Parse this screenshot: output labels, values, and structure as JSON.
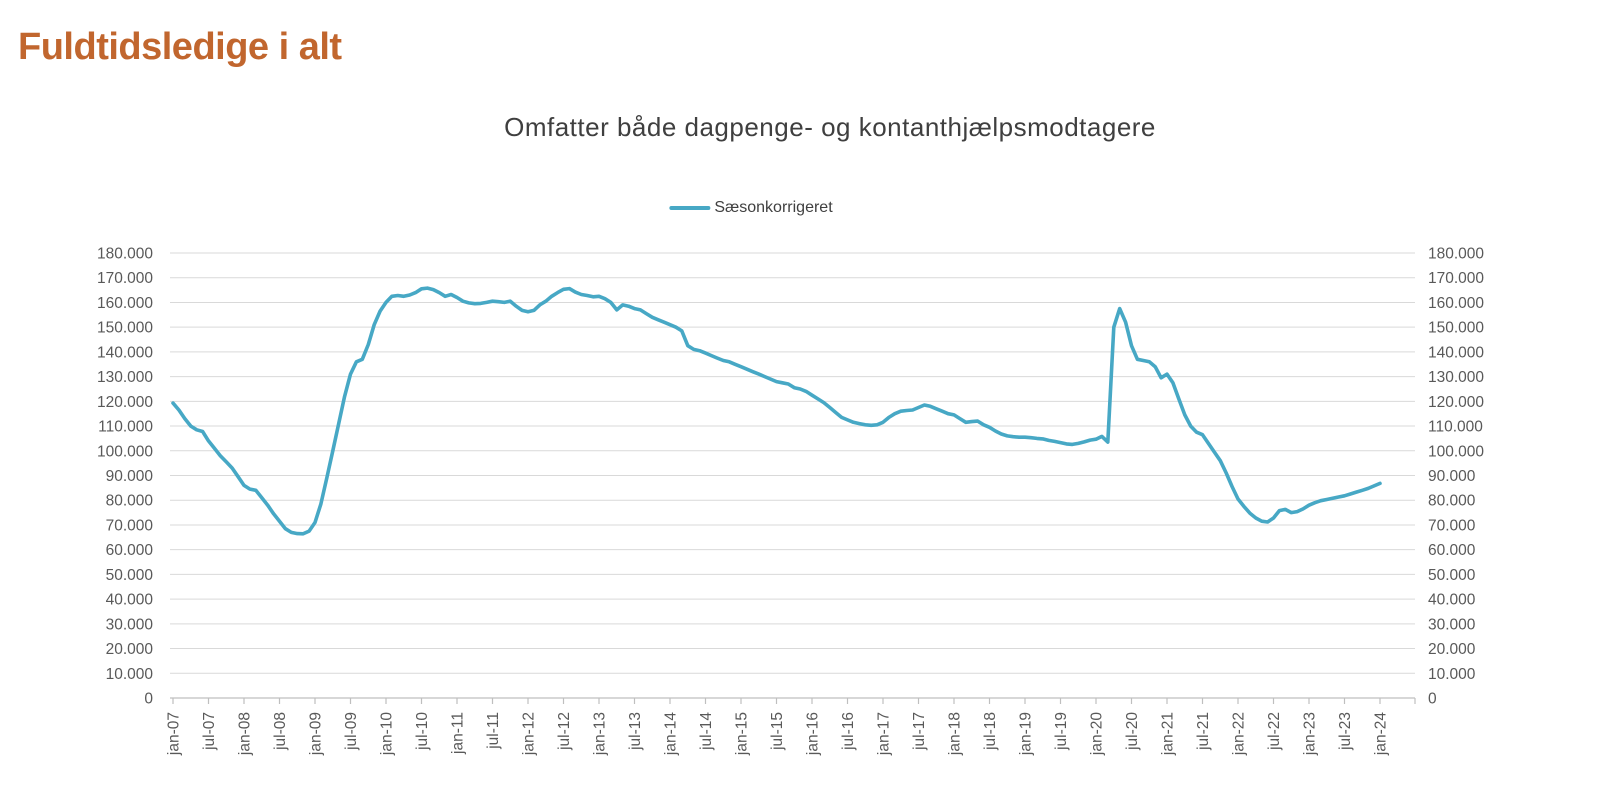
{
  "header": {
    "title": "Fuldtidsledige i alt"
  },
  "chart": {
    "subtitle": "Omfatter både dagpenge- og kontanthjælpsmodtagere",
    "legend": {
      "label": "Sæsonkorrigeret",
      "swatch": "line-swatch"
    }
  },
  "colors": {
    "title_accent": "#c1662e",
    "line": "#47a8c5",
    "gridline": "#d9d9d9",
    "axis_line": "#bfbfbf",
    "axis_text": "#595959",
    "subtitle_text": "#3f3f3f",
    "legend_text": "#404040",
    "background": "#ffffff"
  },
  "chart_data": {
    "type": "line",
    "title": "Omfatter både dagpenge- og kontanthjælpsmodtagere",
    "page_title": "Fuldtidsledige i alt",
    "legend_position": "top-center",
    "grid": "horizontal-only",
    "dual_y_axis": true,
    "ylim": [
      0,
      180000
    ],
    "y_tick_interval": 10000,
    "y_tick_labels": [
      "0",
      "10.000",
      "20.000",
      "30.000",
      "40.000",
      "50.000",
      "60.000",
      "70.000",
      "80.000",
      "90.000",
      "100.000",
      "110.000",
      "120.000",
      "130.000",
      "140.000",
      "150.000",
      "160.000",
      "170.000",
      "180.000"
    ],
    "x_unit": "month",
    "x_start": "jan-07",
    "x_end": "jan-24",
    "x_tick_every_months": 6,
    "x_tick_labels": [
      "jan-07",
      "jul-07",
      "jan-08",
      "jul-08",
      "jan-09",
      "jul-09",
      "jan-10",
      "jul-10",
      "jan-11",
      "jul-11",
      "jan-12",
      "jul-12",
      "jan-13",
      "jul-13",
      "jan-14",
      "jul-14",
      "jan-15",
      "jul-15",
      "jan-16",
      "jul-16",
      "jan-17",
      "jul-17",
      "jan-18",
      "jul-18",
      "jan-19",
      "jul-19",
      "jan-20",
      "jul-20",
      "jan-21",
      "jul-21",
      "jan-22",
      "jul-22",
      "jan-23",
      "jul-23",
      "jan-24"
    ],
    "series": [
      {
        "name": "Sæsonkorrigeret",
        "color": "#47a8c5",
        "monthly_values": [
          119300,
          116500,
          113000,
          110000,
          108500,
          107800,
          104000,
          101000,
          98000,
          95500,
          93000,
          89500,
          86000,
          84500,
          84000,
          81000,
          78000,
          74500,
          71500,
          68500,
          67000,
          66500,
          66400,
          67500,
          71000,
          78500,
          89000,
          100000,
          111000,
          122000,
          131000,
          136000,
          137000,
          143000,
          151000,
          156500,
          160000,
          162500,
          162800,
          162500,
          163000,
          164000,
          165500,
          165800,
          165200,
          164000,
          162500,
          163200,
          162000,
          160500,
          159800,
          159500,
          159600,
          160000,
          160500,
          160300,
          160000,
          160500,
          158500,
          156800,
          156200,
          156800,
          159000,
          160500,
          162500,
          164000,
          165300,
          165600,
          164200,
          163200,
          162800,
          162300,
          162500,
          161500,
          160000,
          157000,
          159000,
          158500,
          157500,
          157000,
          155500,
          154000,
          153000,
          152000,
          151000,
          150000,
          148500,
          142500,
          141000,
          140500,
          139500,
          138500,
          137500,
          136500,
          136000,
          135000,
          134000,
          133000,
          132000,
          131000,
          130000,
          129000,
          128000,
          127500,
          127000,
          125500,
          125000,
          124000,
          122500,
          121000,
          119500,
          117500,
          115500,
          113500,
          112500,
          111500,
          111000,
          110500,
          110300,
          110500,
          111500,
          113500,
          115000,
          116000,
          116300,
          116500,
          117500,
          118500,
          118000,
          117000,
          116000,
          115000,
          114500,
          113000,
          111500,
          111800,
          112000,
          110500,
          109500,
          108000,
          106800,
          106000,
          105700,
          105500,
          105500,
          105300,
          105000,
          104800,
          104200,
          103800,
          103300,
          102800,
          102600,
          103000,
          103600,
          104300,
          104700,
          105800,
          103500,
          150000,
          157500,
          152000,
          142500,
          137000,
          136500,
          136000,
          134000,
          129500,
          131000,
          127500,
          121000,
          114500,
          110000,
          107500,
          106500,
          103000,
          99500,
          96000,
          91000,
          85500,
          80500,
          77500,
          74800,
          72800,
          71500,
          71200,
          72800,
          75800,
          76300,
          75000,
          75400,
          76500,
          78000,
          79000,
          79800,
          80300,
          80800,
          81300,
          81800,
          82500,
          83300,
          84000,
          84800,
          85800,
          86800
        ]
      }
    ]
  }
}
